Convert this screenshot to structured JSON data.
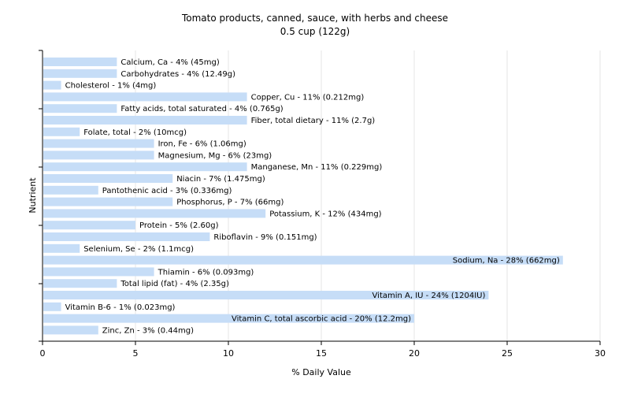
{
  "chart_data": {
    "type": "bar",
    "orientation": "horizontal",
    "title": "Tomato products, canned, sauce, with herbs and cheese",
    "subtitle": "0.5 cup (122g)",
    "xlabel": "% Daily Value",
    "ylabel": "Nutrient",
    "xlim": [
      0,
      30
    ],
    "xticks": [
      0,
      5,
      10,
      15,
      20,
      25,
      30
    ],
    "grid": "vertical",
    "bar_color": "#c6ddf7",
    "categories": [
      "Calcium, Ca",
      "Carbohydrates",
      "Cholesterol",
      "Copper, Cu",
      "Fatty acids, total saturated",
      "Fiber, total dietary",
      "Folate, total",
      "Iron, Fe",
      "Magnesium, Mg",
      "Manganese, Mn",
      "Niacin",
      "Pantothenic acid",
      "Phosphorus, P",
      "Potassium, K",
      "Protein",
      "Riboflavin",
      "Selenium, Se",
      "Sodium, Na",
      "Thiamin",
      "Total lipid (fat)",
      "Vitamin A, IU",
      "Vitamin B-6",
      "Vitamin C, total ascorbic acid",
      "Zinc, Zn"
    ],
    "values": [
      4,
      4,
      1,
      11,
      4,
      11,
      2,
      6,
      6,
      11,
      7,
      3,
      7,
      12,
      5,
      9,
      2,
      28,
      6,
      4,
      24,
      1,
      20,
      3
    ],
    "labels": [
      "Calcium, Ca - 4% (45mg)",
      "Carbohydrates - 4% (12.49g)",
      "Cholesterol - 1% (4mg)",
      "Copper, Cu - 11% (0.212mg)",
      "Fatty acids, total saturated - 4% (0.765g)",
      "Fiber, total dietary - 11% (2.7g)",
      "Folate, total - 2% (10mcg)",
      "Iron, Fe - 6% (1.06mg)",
      "Magnesium, Mg - 6% (23mg)",
      "Manganese, Mn - 11% (0.229mg)",
      "Niacin - 7% (1.475mg)",
      "Pantothenic acid - 3% (0.336mg)",
      "Phosphorus, P - 7% (66mg)",
      "Potassium, K - 12% (434mg)",
      "Protein - 5% (2.60g)",
      "Riboflavin - 9% (0.151mg)",
      "Selenium, Se - 2% (1.1mcg)",
      "Sodium, Na - 28% (662mg)",
      "Thiamin - 6% (0.093mg)",
      "Total lipid (fat) - 4% (2.35g)",
      "Vitamin A, IU - 24% (1204IU)",
      "Vitamin B-6 - 1% (0.023mg)",
      "Vitamin C, total ascorbic acid - 20% (12.2mg)",
      "Zinc, Zn - 3% (0.44mg)"
    ]
  }
}
